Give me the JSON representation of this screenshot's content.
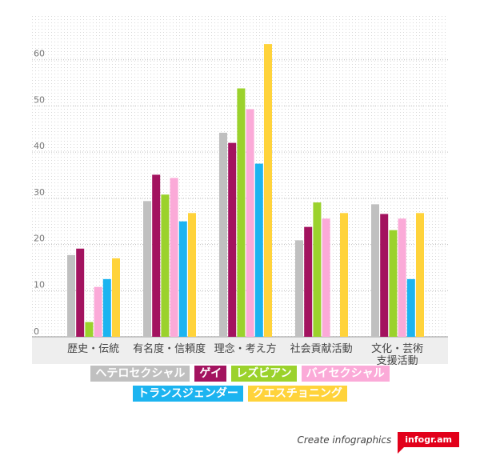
{
  "chart_data": {
    "type": "bar",
    "categories": [
      "歴史・伝統",
      "有名度・信頼度",
      "理念・考え方",
      "社会貢献活動",
      "文化・芸術\n支援活動"
    ],
    "series": [
      {
        "name": "ヘテロセクシャル",
        "color": "#c0c0c0",
        "values": [
          17.7,
          29.4,
          44.2,
          20.9,
          28.7
        ]
      },
      {
        "name": "ゲイ",
        "color": "#a3135f",
        "values": [
          19.1,
          35.1,
          42.0,
          23.8,
          26.6
        ]
      },
      {
        "name": "レズビアン",
        "color": "#9bd22c",
        "values": [
          3.2,
          30.8,
          53.8,
          29.1,
          23.1
        ]
      },
      {
        "name": "バイセクシャル",
        "color": "#fbaad8",
        "values": [
          10.8,
          34.4,
          49.3,
          25.6,
          25.6
        ]
      },
      {
        "name": "トランスジェンダー",
        "color": "#1cb4f0",
        "values": [
          12.5,
          25.0,
          37.5,
          null,
          12.5
        ]
      },
      {
        "name": "クエスチョニング",
        "color": "#ffd33b",
        "values": [
          17.0,
          26.8,
          63.4,
          26.8,
          26.8
        ]
      }
    ],
    "yticks": [
      0,
      10,
      20,
      30,
      40,
      50,
      60
    ],
    "ylim": [
      0,
      70
    ],
    "grid": true,
    "legend_position": "bottom"
  },
  "footer": {
    "text": "Create infographics",
    "badge": "infogr.am"
  }
}
